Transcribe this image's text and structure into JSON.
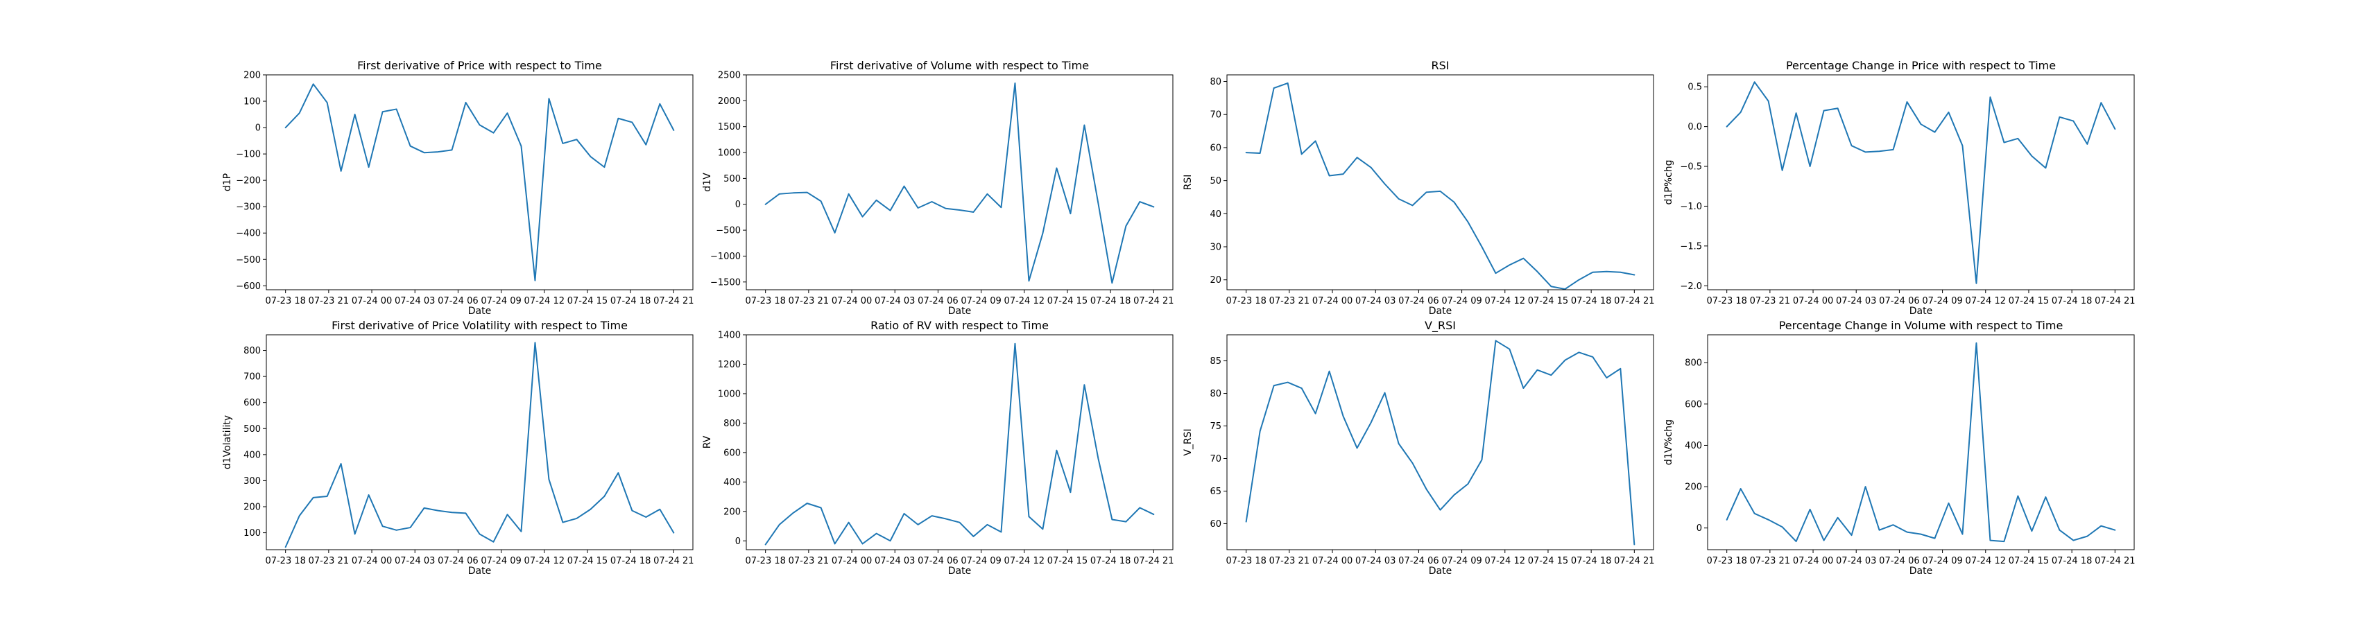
{
  "figure": {
    "background": "#ffffff",
    "line_color": "#1f77b4"
  },
  "chart_data": [
    {
      "type": "line",
      "title": "First derivative of Price with respect to Time",
      "xlabel": "Date",
      "ylabel": "d1P",
      "xtick_labels": [
        "07-23 18",
        "07-23 21",
        "07-24 00",
        "07-24 03",
        "07-24 06",
        "07-24 09",
        "07-24 12",
        "07-24 15",
        "07-24 18",
        "07-24 21"
      ],
      "yticks": [
        -600,
        -500,
        -400,
        -300,
        -200,
        -100,
        0,
        100,
        200
      ],
      "ylim": [
        -615,
        200
      ],
      "values": [
        0,
        55,
        165,
        95,
        -165,
        50,
        -150,
        60,
        70,
        -70,
        -95,
        -92,
        -85,
        95,
        10,
        -20,
        55,
        -70,
        -580,
        110,
        -60,
        -45,
        -110,
        -150,
        35,
        20,
        -65,
        90,
        -10
      ]
    },
    {
      "type": "line",
      "title": "First derivative of Volume with respect to Time",
      "xlabel": "Date",
      "ylabel": "d1V",
      "xtick_labels": [
        "07-23 18",
        "07-23 21",
        "07-24 00",
        "07-24 03",
        "07-24 06",
        "07-24 09",
        "07-24 12",
        "07-24 15",
        "07-24 18",
        "07-24 21"
      ],
      "yticks": [
        -1500,
        -1000,
        -500,
        0,
        500,
        1000,
        1500,
        2000,
        2500
      ],
      "ylim": [
        -1650,
        2500
      ],
      "values": [
        0,
        200,
        220,
        230,
        60,
        -550,
        200,
        -240,
        80,
        -120,
        350,
        -70,
        50,
        -80,
        -110,
        -150,
        200,
        -60,
        2340,
        -1480,
        -560,
        700,
        -180,
        1530,
        20,
        -1520,
        -420,
        50,
        -50
      ]
    },
    {
      "type": "line",
      "title": "RSI",
      "xlabel": "Date",
      "ylabel": "RSI",
      "xtick_labels": [
        "07-23 18",
        "07-23 21",
        "07-24 00",
        "07-24 03",
        "07-24 06",
        "07-24 09",
        "07-24 12",
        "07-24 15",
        "07-24 18",
        "07-24 21"
      ],
      "yticks": [
        20,
        30,
        40,
        50,
        60,
        70,
        80
      ],
      "ylim": [
        17,
        82
      ],
      "values": [
        58.5,
        58.3,
        78,
        79.5,
        58,
        62,
        51.5,
        52,
        57,
        54,
        49,
        44.5,
        42.5,
        46.5,
        46.8,
        43.5,
        37.5,
        30,
        22,
        24.5,
        26.5,
        22.5,
        18,
        17.2,
        20,
        22.3,
        22.5,
        22.3,
        21.5
      ]
    },
    {
      "type": "line",
      "title": "Percentage Change in Price with respect to Time",
      "xlabel": "Date",
      "ylabel": "d1P%chg",
      "xtick_labels": [
        "07-23 18",
        "07-23 21",
        "07-24 00",
        "07-24 03",
        "07-24 06",
        "07-24 09",
        "07-24 12",
        "07-24 15",
        "07-24 18",
        "07-24 21"
      ],
      "yticks": [
        -2.0,
        -1.5,
        -1.0,
        -0.5,
        0.0,
        0.5
      ],
      "ylim": [
        -2.05,
        0.65
      ],
      "values": [
        0,
        0.18,
        0.56,
        0.32,
        -0.55,
        0.17,
        -0.5,
        0.2,
        0.23,
        -0.24,
        -0.32,
        -0.31,
        -0.29,
        0.31,
        0.03,
        -0.07,
        0.18,
        -0.24,
        -1.97,
        0.37,
        -0.2,
        -0.15,
        -0.37,
        -0.52,
        0.12,
        0.07,
        -0.22,
        0.3,
        -0.03
      ]
    },
    {
      "type": "line",
      "title": "First derivative of Price Volatility with respect to Time",
      "xlabel": "Date",
      "ylabel": "d1Volatility",
      "xtick_labels": [
        "07-23 18",
        "07-23 21",
        "07-24 00",
        "07-24 03",
        "07-24 06",
        "07-24 09",
        "07-24 12",
        "07-24 15",
        "07-24 18",
        "07-24 21"
      ],
      "yticks": [
        100,
        200,
        300,
        400,
        500,
        600,
        700,
        800
      ],
      "ylim": [
        35,
        860
      ],
      "values": [
        45,
        165,
        235,
        240,
        365,
        95,
        245,
        125,
        110,
        120,
        195,
        185,
        178,
        175,
        95,
        65,
        170,
        105,
        830,
        305,
        140,
        155,
        190,
        240,
        330,
        185,
        160,
        190,
        100
      ]
    },
    {
      "type": "line",
      "title": "Ratio of RV with respect to Time",
      "xlabel": "Date",
      "ylabel": "RV",
      "xtick_labels": [
        "07-23 18",
        "07-23 21",
        "07-24 00",
        "07-24 03",
        "07-24 06",
        "07-24 09",
        "07-24 12",
        "07-24 15",
        "07-24 18",
        "07-24 21"
      ],
      "yticks": [
        0,
        200,
        400,
        600,
        800,
        1000,
        1200,
        1400
      ],
      "ylim": [
        -60,
        1400
      ],
      "values": [
        -25,
        110,
        190,
        255,
        225,
        -20,
        125,
        -20,
        50,
        0,
        185,
        110,
        170,
        150,
        125,
        30,
        110,
        60,
        1340,
        165,
        80,
        615,
        330,
        1060,
        560,
        145,
        130,
        225,
        180
      ]
    },
    {
      "type": "line",
      "title": "V_RSI",
      "xlabel": "Date",
      "ylabel": "V_RSI",
      "xtick_labels": [
        "07-23 18",
        "07-23 21",
        "07-24 00",
        "07-24 03",
        "07-24 06",
        "07-24 09",
        "07-24 12",
        "07-24 15",
        "07-24 18",
        "07-24 21"
      ],
      "yticks": [
        60,
        65,
        70,
        75,
        80,
        85
      ],
      "ylim": [
        56,
        89
      ],
      "values": [
        60.3,
        74.2,
        81.2,
        81.7,
        80.8,
        76.9,
        83.4,
        76.5,
        71.6,
        75.5,
        80.1,
        72.3,
        69.3,
        65.3,
        62.1,
        64.4,
        66.1,
        69.8,
        88.1,
        86.8,
        80.8,
        83.6,
        82.8,
        85.1,
        86.3,
        85.6,
        82.4,
        83.8,
        56.8
      ]
    },
    {
      "type": "line",
      "title": "Percentage Change in Volume with respect to Time",
      "xlabel": "Date",
      "ylabel": "d1V%chg",
      "xtick_labels": [
        "07-23 18",
        "07-23 21",
        "07-24 00",
        "07-24 03",
        "07-24 06",
        "07-24 09",
        "07-24 12",
        "07-24 15",
        "07-24 18",
        "07-24 21"
      ],
      "yticks": [
        0,
        200,
        400,
        600,
        800
      ],
      "ylim": [
        -105,
        935
      ],
      "values": [
        40,
        190,
        70,
        40,
        5,
        -65,
        90,
        -60,
        50,
        -35,
        200,
        -10,
        15,
        -20,
        -30,
        -50,
        120,
        -30,
        895,
        -60,
        -65,
        155,
        -15,
        150,
        -10,
        -60,
        -40,
        10,
        -10
      ]
    }
  ]
}
